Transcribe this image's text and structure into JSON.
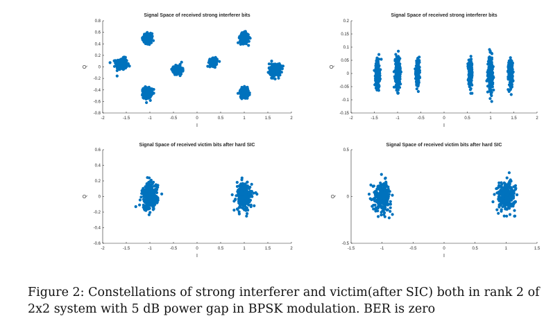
{
  "caption": "Figure 2: Constellations of strong interferer and victim(after SIC) both in rank 2 of 2x2 system with 5 dB power gap in BPSK modulation. BER is zero",
  "colors": {
    "marker": "#0072bd",
    "axis": "#262626"
  },
  "chart_data": [
    {
      "type": "scatter",
      "title": "Signal Space of received strong interferer bits",
      "xlabel": "I",
      "ylabel": "Q",
      "xlim": [
        -2,
        2
      ],
      "ylim": [
        -0.8,
        0.8
      ],
      "xticks": [
        "-2",
        "-1.5",
        "-1",
        "-0.5",
        "0",
        "0.5",
        "1",
        "1.5",
        "2"
      ],
      "yticks": [
        "-0.8",
        "-0.6",
        "-0.4",
        "-0.2",
        "0",
        "0.2",
        "0.4",
        "0.6",
        "0.8"
      ],
      "clusters": [
        {
          "x": -1.6,
          "y": 0.05,
          "sx": 0.11,
          "sy": 0.09
        },
        {
          "x": -1.05,
          "y": 0.5,
          "sx": 0.08,
          "sy": 0.07
        },
        {
          "x": -1.05,
          "y": -0.45,
          "sx": 0.08,
          "sy": 0.08
        },
        {
          "x": -0.4,
          "y": -0.05,
          "sx": 0.08,
          "sy": 0.07
        },
        {
          "x": 0.35,
          "y": 0.08,
          "sx": 0.07,
          "sy": 0.06
        },
        {
          "x": 1.0,
          "y": 0.5,
          "sx": 0.08,
          "sy": 0.08
        },
        {
          "x": 1.0,
          "y": -0.45,
          "sx": 0.08,
          "sy": 0.07
        },
        {
          "x": 1.65,
          "y": -0.05,
          "sx": 0.11,
          "sy": 0.1
        }
      ]
    },
    {
      "type": "scatter",
      "title": "Signal Space of received strong interferer bits",
      "xlabel": "I",
      "ylabel": "Q",
      "xlim": [
        -2,
        2
      ],
      "ylim": [
        -0.15,
        0.2
      ],
      "xticks": [
        "-2",
        "-1.5",
        "-1",
        "-0.5",
        "0",
        "0.5",
        "1",
        "1.5",
        "2"
      ],
      "yticks": [
        "-0.15",
        "-0.1",
        "-0.05",
        "0",
        "0.05",
        "0.1",
        "0.15",
        "0.2"
      ],
      "clusters": [
        {
          "x": -1.43,
          "y": 0.0,
          "sx": 0.04,
          "sy": 0.045
        },
        {
          "x": -1.0,
          "y": 0.0,
          "sx": 0.045,
          "sy": 0.055
        },
        {
          "x": -0.57,
          "y": 0.0,
          "sx": 0.035,
          "sy": 0.04
        },
        {
          "x": 0.57,
          "y": 0.0,
          "sx": 0.035,
          "sy": 0.04
        },
        {
          "x": 1.0,
          "y": 0.0,
          "sx": 0.045,
          "sy": 0.055
        },
        {
          "x": 1.43,
          "y": 0.0,
          "sx": 0.04,
          "sy": 0.045
        }
      ]
    },
    {
      "type": "scatter",
      "title": "Signal Space of received victim bits after hard SIC",
      "xlabel": "I",
      "ylabel": "Q",
      "xlim": [
        -2,
        2
      ],
      "ylim": [
        -0.6,
        0.6
      ],
      "xticks": [
        "-2",
        "-1.5",
        "-1",
        "-0.5",
        "0",
        "0.5",
        "1",
        "1.5",
        "2"
      ],
      "yticks": [
        "-0.6",
        "-0.4",
        "-0.2",
        "0",
        "0.2",
        "0.4",
        "0.6"
      ],
      "clusters": [
        {
          "x": -1.0,
          "y": 0.0,
          "sx": 0.15,
          "sy": 0.16
        },
        {
          "x": 1.0,
          "y": 0.0,
          "sx": 0.15,
          "sy": 0.16
        }
      ]
    },
    {
      "type": "scatter",
      "title": "Signal Space of received victim bits after hard SIC",
      "xlabel": "I",
      "ylabel": "Q",
      "xlim": [
        -1.5,
        1.5
      ],
      "ylim": [
        -0.5,
        0.5
      ],
      "xticks": [
        "-1.5",
        "-1",
        "-0.5",
        "0",
        "0.5",
        "1",
        "1.5"
      ],
      "yticks": [
        "-0.5",
        "0",
        "0.5"
      ],
      "clusters": [
        {
          "x": -1.0,
          "y": 0.0,
          "sx": 0.13,
          "sy": 0.14
        },
        {
          "x": 1.0,
          "y": 0.0,
          "sx": 0.13,
          "sy": 0.14
        }
      ]
    }
  ]
}
